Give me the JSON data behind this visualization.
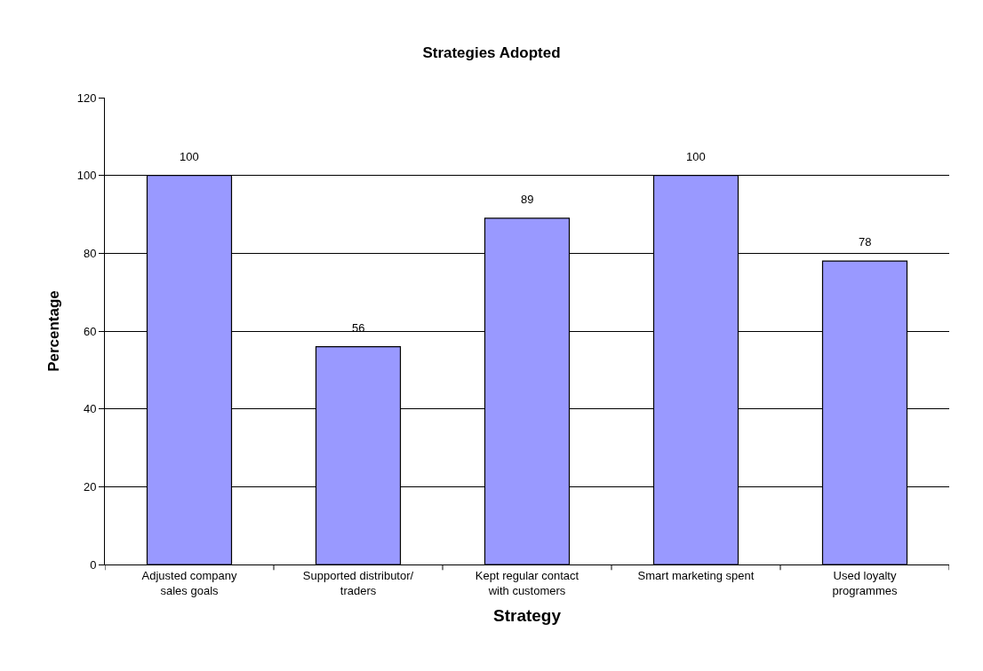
{
  "chart_data": {
    "type": "bar",
    "title": "Strategies Adopted",
    "xlabel": "Strategy",
    "ylabel": "Percentage",
    "categories": [
      "Adjusted company\nsales goals",
      "Supported distributor/\ntraders",
      "Kept regular contact\nwith customers",
      "Smart marketing spent",
      "Used loyalty\nprogrammes"
    ],
    "values": [
      100,
      56,
      89,
      100,
      78
    ],
    "color": "#9999ff",
    "ylim": [
      0,
      120
    ],
    "yticks": [
      0,
      20,
      40,
      60,
      80,
      100,
      120
    ],
    "grid": "y",
    "data_labels": true
  }
}
